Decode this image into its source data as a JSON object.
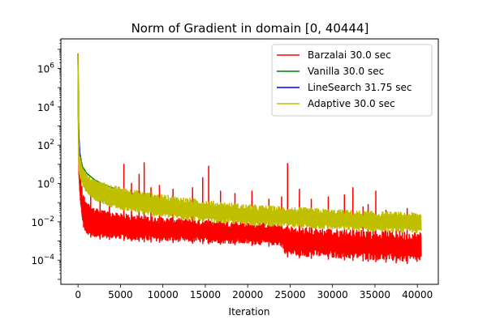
{
  "chart_data": {
    "type": "line",
    "title": "Norm of Gradient in domain [0, 40444]",
    "xlabel": "Iteration",
    "ylabel": "",
    "yscale": "log",
    "xlim": [
      -2022,
      42466
    ],
    "ylim": [
      5.5e-06,
      35000000.0
    ],
    "xticks": [
      0,
      5000,
      10000,
      15000,
      20000,
      25000,
      30000,
      35000,
      40000
    ],
    "xtick_labels": [
      "0",
      "5000",
      "10000",
      "15000",
      "20000",
      "25000",
      "30000",
      "35000",
      "40000"
    ],
    "yticks": [
      0.0001,
      0.01,
      1,
      100,
      10000,
      1000000
    ],
    "ytick_labels": [
      {
        "base": "10",
        "exp": "−4"
      },
      {
        "base": "10",
        "exp": "−2"
      },
      {
        "base": "10",
        "exp": "0"
      },
      {
        "base": "10",
        "exp": "2"
      },
      {
        "base": "10",
        "exp": "4"
      },
      {
        "base": "10",
        "exp": "6"
      }
    ],
    "grid": false,
    "legend_position": "top-right",
    "x_max": 40444,
    "series": [
      {
        "name": "Barzalai 30.0 sec",
        "color": "#ff0000",
        "x": [
          0,
          100,
          300,
          600,
          1000,
          2000,
          4000,
          8000,
          12000,
          16000,
          20000,
          24000,
          24500,
          28000,
          32000,
          36000,
          40444
        ],
        "y_low": [
          6000000,
          3,
          0.05,
          0.005,
          0.002,
          0.0013,
          0.0012,
          0.0009,
          0.0008,
          0.0007,
          0.0006,
          0.0005,
          0.00015,
          0.00012,
          0.0001,
          8e-05,
          6e-05
        ],
        "y_high": [
          6000000,
          10,
          2,
          0.3,
          0.1,
          0.05,
          0.03,
          0.02,
          0.015,
          0.012,
          0.01,
          0.008,
          0.006,
          0.005,
          0.004,
          0.0035,
          0.003
        ],
        "spikes": [
          [
            1500,
            0.4
          ],
          [
            2600,
            0.3
          ],
          [
            3700,
            0.5
          ],
          [
            5400,
            10
          ],
          [
            6300,
            1
          ],
          [
            7200,
            3
          ],
          [
            7800,
            12
          ],
          [
            8600,
            0.6
          ],
          [
            9600,
            0.8
          ],
          [
            11200,
            0.5
          ],
          [
            13500,
            0.6
          ],
          [
            14700,
            2
          ],
          [
            15400,
            8
          ],
          [
            16800,
            0.4
          ],
          [
            18500,
            0.3
          ],
          [
            20500,
            0.4
          ],
          [
            22500,
            0.15
          ],
          [
            24000,
            0.2
          ],
          [
            24700,
            11
          ],
          [
            26100,
            0.5
          ],
          [
            27500,
            0.15
          ],
          [
            29500,
            0.2
          ],
          [
            31400,
            0.25
          ],
          [
            32400,
            0.6
          ],
          [
            33600,
            0.06
          ],
          [
            34200,
            0.08
          ],
          [
            35100,
            0.4
          ],
          [
            36300,
            0.04
          ],
          [
            37500,
            0.03
          ],
          [
            38800,
            0.05
          ]
        ]
      },
      {
        "name": "Vanilla 30.0 sec",
        "color": "#008000",
        "x": [
          0,
          50,
          100,
          200,
          500,
          1000,
          2000,
          3000,
          5000,
          10000,
          15000,
          20000,
          25000,
          30000,
          35000,
          40444
        ],
        "y": [
          6000000,
          1000,
          150,
          40,
          8,
          3.5,
          1.5,
          0.9,
          0.4,
          0.12,
          0.06,
          0.037,
          0.026,
          0.019,
          0.015,
          0.012
        ]
      },
      {
        "name": "LineSearch 31.75 sec",
        "color": "#0000ff",
        "x": [
          0,
          40,
          100,
          200,
          500,
          1000,
          2000,
          4000,
          8000,
          15000,
          25000,
          40444
        ],
        "y": [
          6000000,
          5000,
          300,
          40,
          6,
          2,
          0.9,
          0.35,
          0.12,
          0.04,
          0.015,
          0.005
        ]
      },
      {
        "name": "Adaptive 30.0 sec",
        "color": "#bfbf00",
        "x": [
          0,
          50,
          100,
          200,
          500,
          1000,
          2000,
          4000,
          8000,
          12000,
          16000,
          20000,
          25000,
          30000,
          35000,
          40444
        ],
        "y_low": [
          6000000,
          30,
          5,
          2,
          0.8,
          0.3,
          0.12,
          0.05,
          0.02,
          0.012,
          0.008,
          0.006,
          0.0045,
          0.0035,
          0.0028,
          0.0022
        ],
        "y_high": [
          6000000,
          600,
          120,
          30,
          8,
          3,
          1.5,
          0.8,
          0.35,
          0.2,
          0.12,
          0.08,
          0.06,
          0.045,
          0.035,
          0.03
        ]
      }
    ]
  }
}
